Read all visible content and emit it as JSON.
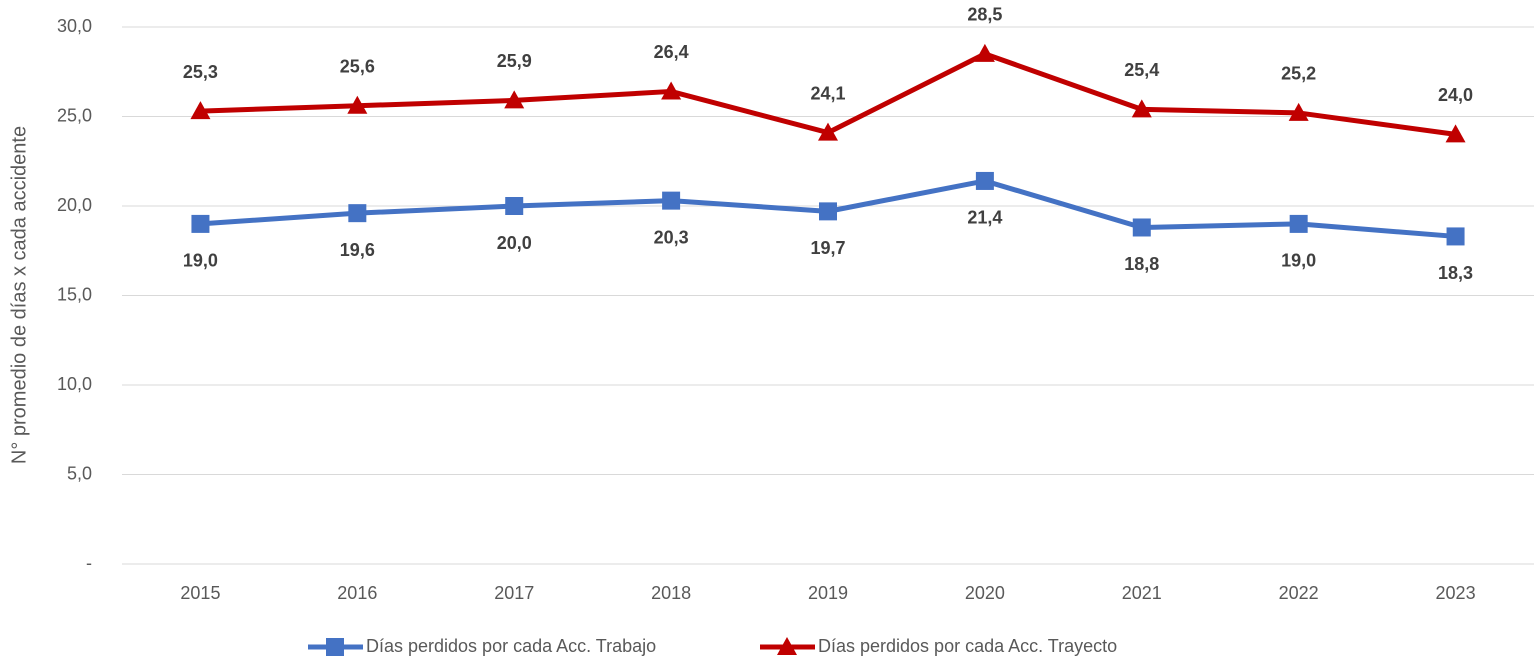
{
  "chart_data": {
    "type": "line",
    "y_label": "N° promedio de días  x cada accidente",
    "categories": [
      "2015",
      "2016",
      "2017",
      "2018",
      "2019",
      "2020",
      "2021",
      "2022",
      "2023"
    ],
    "series": [
      {
        "name": "Días perdidos por cada Acc. Trabajo",
        "color": "#4472c4",
        "marker": "square",
        "label_position": "below",
        "values": [
          19.0,
          19.6,
          20.0,
          20.3,
          19.7,
          21.4,
          18.8,
          19.0,
          18.3
        ],
        "value_labels": [
          "19,0",
          "19,6",
          "20,0",
          "20,3",
          "19,7",
          "21,4",
          "18,8",
          "19,0",
          "18,3"
        ]
      },
      {
        "name": "Días perdidos por cada Acc. Trayecto",
        "color": "#c00000",
        "marker": "triangle",
        "label_position": "above",
        "values": [
          25.3,
          25.6,
          25.9,
          26.4,
          24.1,
          28.5,
          25.4,
          25.2,
          24.0
        ],
        "value_labels": [
          "25,3",
          "25,6",
          "25,9",
          "26,4",
          "24,1",
          "28,5",
          "25,4",
          "25,2",
          "24,0"
        ]
      }
    ],
    "ylim": [
      0,
      30
    ],
    "yticks": [
      {
        "value": 0,
        "label": "-"
      },
      {
        "value": 5,
        "label": "5,0"
      },
      {
        "value": 10,
        "label": "10,0"
      },
      {
        "value": 15,
        "label": "15,0"
      },
      {
        "value": 20,
        "label": "20,0"
      },
      {
        "value": 25,
        "label": "25,0"
      },
      {
        "value": 30,
        "label": "30,0"
      }
    ],
    "grid": true,
    "legend": "bottom"
  }
}
